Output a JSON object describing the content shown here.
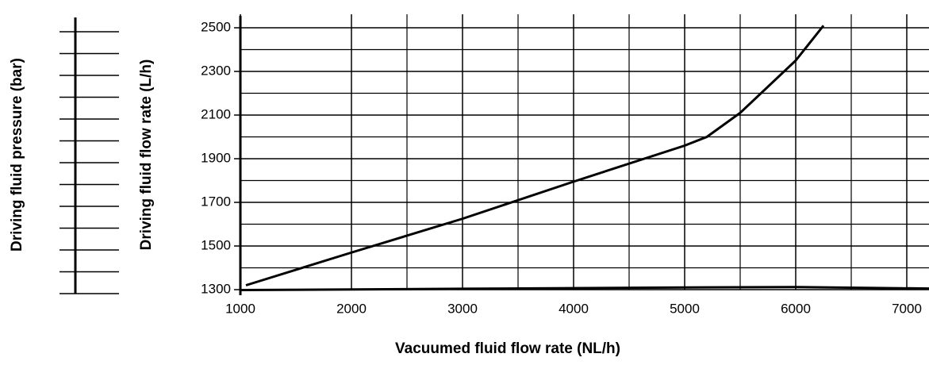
{
  "chart_data": {
    "type": "line",
    "xlabel": "Vacuumed fluid flow rate (NL/h)",
    "ylabel": "Driving fluid flow rate (L/h)",
    "y2label": "Driving fluid pressure (bar)",
    "xlim": [
      1000,
      7200
    ],
    "xticks": [
      1000,
      2000,
      3000,
      4000,
      5000,
      6000,
      7000
    ],
    "ylim": [
      1300,
      2500
    ],
    "yticks": [
      1300,
      1500,
      1700,
      1900,
      2100,
      2300,
      2500
    ],
    "grid": true,
    "series": [
      {
        "color": "#000000",
        "x": [
          1050,
          2000,
          3000,
          4000,
          5000,
          5200,
          5500,
          6000,
          6250
        ],
        "values": [
          1320,
          1470,
          1625,
          1795,
          1960,
          2000,
          2110,
          2350,
          2510
        ]
      },
      {
        "color": "#000000",
        "x": [
          1000,
          3000,
          5000,
          6000,
          7200
        ],
        "values": [
          1298,
          1304,
          1310,
          1312,
          1305
        ]
      }
    ]
  }
}
